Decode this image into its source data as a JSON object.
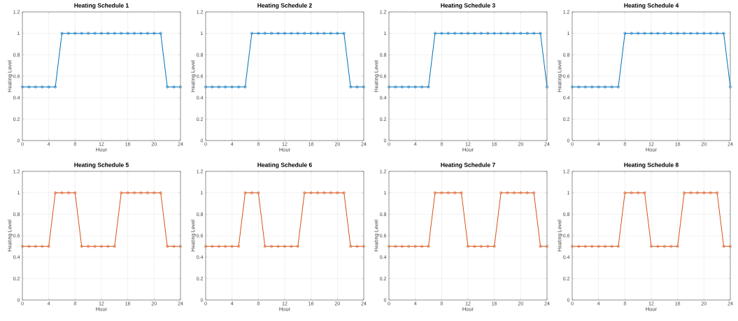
{
  "chart_data": [
    {
      "type": "line",
      "title": "Heating Schedule 1",
      "xlabel": "Hour",
      "ylabel": "Heating Level",
      "x": [
        0,
        1,
        2,
        3,
        4,
        5,
        6,
        7,
        8,
        9,
        10,
        11,
        12,
        13,
        14,
        15,
        16,
        17,
        18,
        19,
        20,
        21,
        22,
        23,
        24
      ],
      "values": [
        0.5,
        0.5,
        0.5,
        0.5,
        0.5,
        0.5,
        1,
        1,
        1,
        1,
        1,
        1,
        1,
        1,
        1,
        1,
        1,
        1,
        1,
        1,
        1,
        1,
        0.5,
        0.5,
        0.5
      ],
      "color": "#0072bd",
      "xlim": [
        0,
        24
      ],
      "ylim": [
        0,
        1.2
      ],
      "xticks": [
        0,
        4,
        8,
        12,
        16,
        20,
        24
      ],
      "yticks": [
        0,
        0.2,
        0.4,
        0.6,
        0.8,
        1,
        1.2
      ],
      "grid": true,
      "marker": "circle",
      "line_style": "solid"
    },
    {
      "type": "line",
      "title": "Heating Schedule 2",
      "xlabel": "Hour",
      "ylabel": "Heating Level",
      "x": [
        0,
        1,
        2,
        3,
        4,
        5,
        6,
        7,
        8,
        9,
        10,
        11,
        12,
        13,
        14,
        15,
        16,
        17,
        18,
        19,
        20,
        21,
        22,
        23,
        24
      ],
      "values": [
        0.5,
        0.5,
        0.5,
        0.5,
        0.5,
        0.5,
        0.5,
        1,
        1,
        1,
        1,
        1,
        1,
        1,
        1,
        1,
        1,
        1,
        1,
        1,
        1,
        1,
        0.5,
        0.5,
        0.5
      ],
      "color": "#0072bd",
      "xlim": [
        0,
        24
      ],
      "ylim": [
        0,
        1.2
      ],
      "xticks": [
        0,
        4,
        8,
        12,
        16,
        20,
        24
      ],
      "yticks": [
        0,
        0.2,
        0.4,
        0.6,
        0.8,
        1,
        1.2
      ],
      "grid": true,
      "marker": "circle",
      "line_style": "solid"
    },
    {
      "type": "line",
      "title": "Heating Schedule 3",
      "xlabel": "Hour",
      "ylabel": "Heating Level",
      "x": [
        0,
        1,
        2,
        3,
        4,
        5,
        6,
        7,
        8,
        9,
        10,
        11,
        12,
        13,
        14,
        15,
        16,
        17,
        18,
        19,
        20,
        21,
        22,
        23,
        24
      ],
      "values": [
        0.5,
        0.5,
        0.5,
        0.5,
        0.5,
        0.5,
        0.5,
        1,
        1,
        1,
        1,
        1,
        1,
        1,
        1,
        1,
        1,
        1,
        1,
        1,
        1,
        1,
        1,
        1,
        0.5
      ],
      "color": "#0072bd",
      "xlim": [
        0,
        24
      ],
      "ylim": [
        0,
        1.2
      ],
      "xticks": [
        0,
        4,
        8,
        12,
        16,
        20,
        24
      ],
      "yticks": [
        0,
        0.2,
        0.4,
        0.6,
        0.8,
        1,
        1.2
      ],
      "grid": true,
      "marker": "circle",
      "line_style": "solid"
    },
    {
      "type": "line",
      "title": "Heating Schedule 4",
      "xlabel": "Hour",
      "ylabel": "Heating Level",
      "x": [
        0,
        1,
        2,
        3,
        4,
        5,
        6,
        7,
        8,
        9,
        10,
        11,
        12,
        13,
        14,
        15,
        16,
        17,
        18,
        19,
        20,
        21,
        22,
        23,
        24
      ],
      "values": [
        0.5,
        0.5,
        0.5,
        0.5,
        0.5,
        0.5,
        0.5,
        0.5,
        1,
        1,
        1,
        1,
        1,
        1,
        1,
        1,
        1,
        1,
        1,
        1,
        1,
        1,
        1,
        1,
        0.5
      ],
      "color": "#0072bd",
      "xlim": [
        0,
        24
      ],
      "ylim": [
        0,
        1.2
      ],
      "xticks": [
        0,
        4,
        8,
        12,
        16,
        20,
        24
      ],
      "yticks": [
        0,
        0.2,
        0.4,
        0.6,
        0.8,
        1,
        1.2
      ],
      "grid": true,
      "marker": "circle",
      "line_style": "solid"
    },
    {
      "type": "line",
      "title": "Heating Schedule 5",
      "xlabel": "Hour",
      "ylabel": "Heating Level",
      "x": [
        0,
        1,
        2,
        3,
        4,
        5,
        6,
        7,
        8,
        9,
        10,
        11,
        12,
        13,
        14,
        15,
        16,
        17,
        18,
        19,
        20,
        21,
        22,
        23,
        24
      ],
      "values": [
        0.5,
        0.5,
        0.5,
        0.5,
        0.5,
        1,
        1,
        1,
        1,
        0.5,
        0.5,
        0.5,
        0.5,
        0.5,
        0.5,
        1,
        1,
        1,
        1,
        1,
        1,
        1,
        0.5,
        0.5,
        0.5
      ],
      "color": "#d95319",
      "xlim": [
        0,
        24
      ],
      "ylim": [
        0,
        1.2
      ],
      "xticks": [
        0,
        4,
        8,
        12,
        16,
        20,
        24
      ],
      "yticks": [
        0,
        0.2,
        0.4,
        0.6,
        0.8,
        1,
        1.2
      ],
      "grid": true,
      "marker": "circle",
      "line_style": "solid"
    },
    {
      "type": "line",
      "title": "Heating Schedule 6",
      "xlabel": "Hour",
      "ylabel": "Heating Level",
      "x": [
        0,
        1,
        2,
        3,
        4,
        5,
        6,
        7,
        8,
        9,
        10,
        11,
        12,
        13,
        14,
        15,
        16,
        17,
        18,
        19,
        20,
        21,
        22,
        23,
        24
      ],
      "values": [
        0.5,
        0.5,
        0.5,
        0.5,
        0.5,
        0.5,
        1,
        1,
        1,
        0.5,
        0.5,
        0.5,
        0.5,
        0.5,
        0.5,
        1,
        1,
        1,
        1,
        1,
        1,
        1,
        0.5,
        0.5,
        0.5
      ],
      "color": "#d95319",
      "xlim": [
        0,
        24
      ],
      "ylim": [
        0,
        1.2
      ],
      "xticks": [
        0,
        4,
        8,
        12,
        16,
        20,
        24
      ],
      "yticks": [
        0,
        0.2,
        0.4,
        0.6,
        0.8,
        1,
        1.2
      ],
      "grid": true,
      "marker": "circle",
      "line_style": "solid"
    },
    {
      "type": "line",
      "title": "Heating Schedule 7",
      "xlabel": "Hour",
      "ylabel": "Heating Level",
      "x": [
        0,
        1,
        2,
        3,
        4,
        5,
        6,
        7,
        8,
        9,
        10,
        11,
        12,
        13,
        14,
        15,
        16,
        17,
        18,
        19,
        20,
        21,
        22,
        23,
        24
      ],
      "values": [
        0.5,
        0.5,
        0.5,
        0.5,
        0.5,
        0.5,
        0.5,
        1,
        1,
        1,
        1,
        1,
        0.5,
        0.5,
        0.5,
        0.5,
        0.5,
        1,
        1,
        1,
        1,
        1,
        1,
        0.5,
        0.5
      ],
      "color": "#d95319",
      "xlim": [
        0,
        24
      ],
      "ylim": [
        0,
        1.2
      ],
      "xticks": [
        0,
        4,
        8,
        12,
        16,
        20,
        24
      ],
      "yticks": [
        0,
        0.2,
        0.4,
        0.6,
        0.8,
        1,
        1.2
      ],
      "grid": true,
      "marker": "circle",
      "line_style": "solid"
    },
    {
      "type": "line",
      "title": "Heating Schedule 8",
      "xlabel": "Hour",
      "ylabel": "Heating Level",
      "x": [
        0,
        1,
        2,
        3,
        4,
        5,
        6,
        7,
        8,
        9,
        10,
        11,
        12,
        13,
        14,
        15,
        16,
        17,
        18,
        19,
        20,
        21,
        22,
        23,
        24
      ],
      "values": [
        0.5,
        0.5,
        0.5,
        0.5,
        0.5,
        0.5,
        0.5,
        0.5,
        1,
        1,
        1,
        1,
        0.5,
        0.5,
        0.5,
        0.5,
        0.5,
        1,
        1,
        1,
        1,
        1,
        1,
        0.5,
        0.5
      ],
      "color": "#d95319",
      "xlim": [
        0,
        24
      ],
      "ylim": [
        0,
        1.2
      ],
      "xticks": [
        0,
        4,
        8,
        12,
        16,
        20,
        24
      ],
      "yticks": [
        0,
        0.2,
        0.4,
        0.6,
        0.8,
        1,
        1.2
      ],
      "grid": true,
      "marker": "circle",
      "line_style": "solid"
    }
  ]
}
